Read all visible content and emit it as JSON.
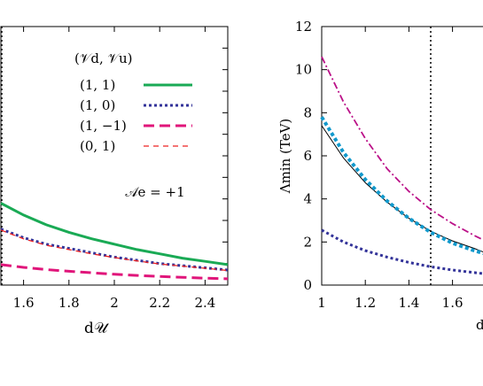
{
  "chart_data": [
    {
      "type": "line",
      "panel": "left (partially cropped)",
      "xlabel": "d𝒰",
      "ylabel": "",
      "xlim": [
        1.5,
        2.5
      ],
      "xticks": [
        "1.6",
        "1.8",
        "2",
        "2.2",
        "2.4"
      ],
      "vertical_line": 1.5,
      "legend_title": "(𝒱d, 𝒱u)",
      "legend_position": "top-right",
      "annotation": "𝒜e = +1",
      "series": [
        {
          "name": "(1,  1)",
          "style": "solid",
          "color": "#1aaa55",
          "x": [
            1.5,
            1.6,
            1.7,
            1.8,
            1.9,
            2.0,
            2.1,
            2.2,
            2.3,
            2.4,
            2.5
          ],
          "y": [
            3.8,
            3.25,
            2.8,
            2.45,
            2.15,
            1.9,
            1.65,
            1.45,
            1.25,
            1.1,
            0.95
          ]
        },
        {
          "name": "(1,  0)",
          "style": "dotted",
          "color": "#333399",
          "x": [
            1.5,
            1.6,
            1.7,
            1.8,
            1.9,
            2.0,
            2.1,
            2.2,
            2.3,
            2.4,
            2.5
          ],
          "y": [
            2.6,
            2.2,
            1.9,
            1.7,
            1.5,
            1.3,
            1.15,
            1.0,
            0.9,
            0.8,
            0.7
          ]
        },
        {
          "name": "(1, −1)",
          "style": "dashed",
          "color": "#e0157a",
          "x": [
            1.5,
            1.6,
            1.7,
            1.8,
            1.9,
            2.0,
            2.1,
            2.2,
            2.3,
            2.4,
            2.5
          ],
          "y": [
            0.95,
            0.82,
            0.72,
            0.64,
            0.57,
            0.5,
            0.45,
            0.4,
            0.36,
            0.32,
            0.29
          ]
        },
        {
          "name": "(0,  1)",
          "style": "short-dashed",
          "color": "#ee2222",
          "x": [
            1.5,
            1.6,
            1.7,
            1.8,
            1.9,
            2.0,
            2.1,
            2.2,
            2.3,
            2.4,
            2.5
          ],
          "y": [
            2.55,
            2.15,
            1.85,
            1.65,
            1.45,
            1.28,
            1.12,
            0.98,
            0.88,
            0.78,
            0.68
          ]
        }
      ]
    },
    {
      "type": "line",
      "panel": "right (partially cropped)",
      "ylabel": "Λmin (TeV)",
      "xlabel": "d",
      "xlim": [
        1.0,
        1.75
      ],
      "ylim": [
        0,
        12
      ],
      "xticks": [
        "1",
        "1.2",
        "1.4",
        "1.6"
      ],
      "yticks": [
        "0",
        "2",
        "4",
        "6",
        "8",
        "10",
        "12"
      ],
      "vertical_line": 1.5,
      "series": [
        {
          "style": "solid-thin",
          "color": "#000000",
          "x": [
            1.0,
            1.1,
            1.2,
            1.3,
            1.4,
            1.5,
            1.6,
            1.7,
            1.75
          ],
          "y": [
            7.4,
            5.9,
            4.75,
            3.85,
            3.1,
            2.5,
            2.05,
            1.7,
            1.5
          ]
        },
        {
          "style": "dotted-thick",
          "color": "#1199cc",
          "x": [
            1.0,
            1.1,
            1.2,
            1.3,
            1.4,
            1.5,
            1.6,
            1.7,
            1.75
          ],
          "y": [
            7.8,
            6.15,
            4.9,
            3.9,
            3.1,
            2.45,
            1.95,
            1.6,
            1.45
          ]
        },
        {
          "style": "dash-dot",
          "color": "#bb1188",
          "x": [
            1.0,
            1.1,
            1.2,
            1.3,
            1.4,
            1.5,
            1.6,
            1.7,
            1.75
          ],
          "y": [
            10.6,
            8.5,
            6.8,
            5.4,
            4.35,
            3.5,
            2.85,
            2.3,
            2.05
          ]
        },
        {
          "style": "dotted",
          "color": "#333399",
          "x": [
            1.0,
            1.1,
            1.2,
            1.3,
            1.4,
            1.5,
            1.6,
            1.7,
            1.75
          ],
          "y": [
            2.55,
            2.0,
            1.6,
            1.3,
            1.05,
            0.85,
            0.7,
            0.58,
            0.52
          ]
        }
      ]
    }
  ]
}
